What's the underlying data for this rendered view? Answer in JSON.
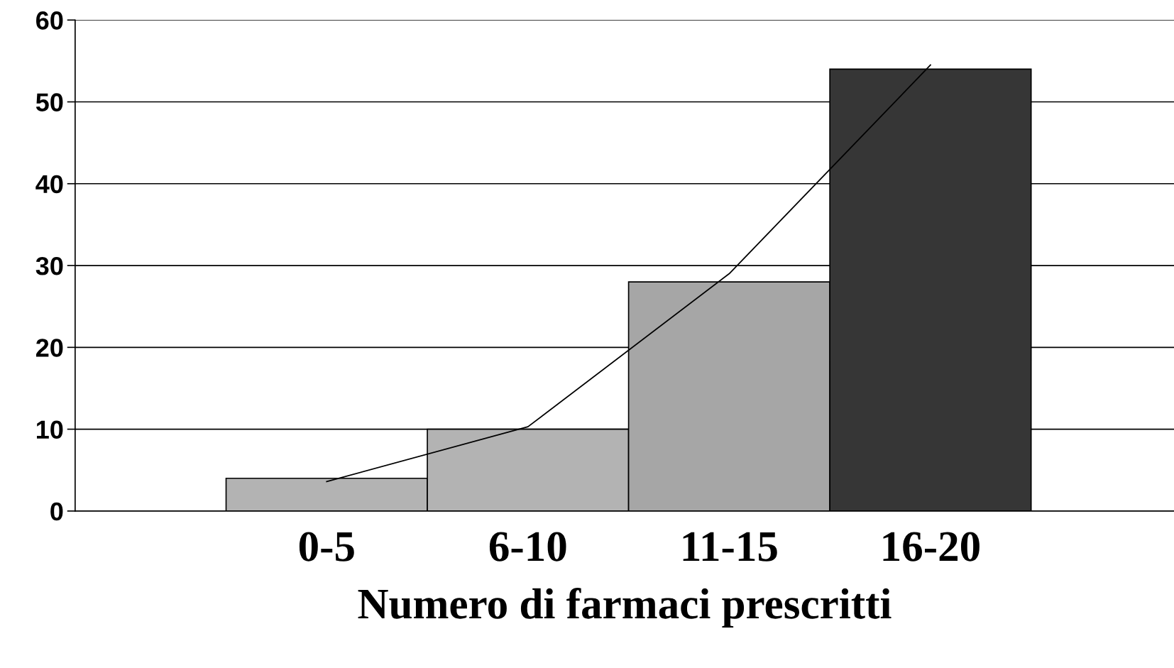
{
  "chart_data": {
    "type": "bar",
    "xlabel": "Numero di farmaci prescritti",
    "categories": [
      "0-5",
      "6-10",
      "11-15",
      "16-20"
    ],
    "series": [
      {
        "colors": [
          "#b3b3b3",
          "#b3b3b3",
          "#a6a6a6",
          "#363636"
        ],
        "values": [
          4,
          10,
          28,
          54
        ]
      },
      {
        "type": "line",
        "color": "#000000",
        "values": [
          3.6,
          10.3,
          29,
          54.5
        ]
      }
    ],
    "ylim": [
      0,
      60
    ],
    "yticks": [
      0,
      10,
      20,
      30,
      40,
      50,
      60
    ],
    "grid": "y"
  }
}
